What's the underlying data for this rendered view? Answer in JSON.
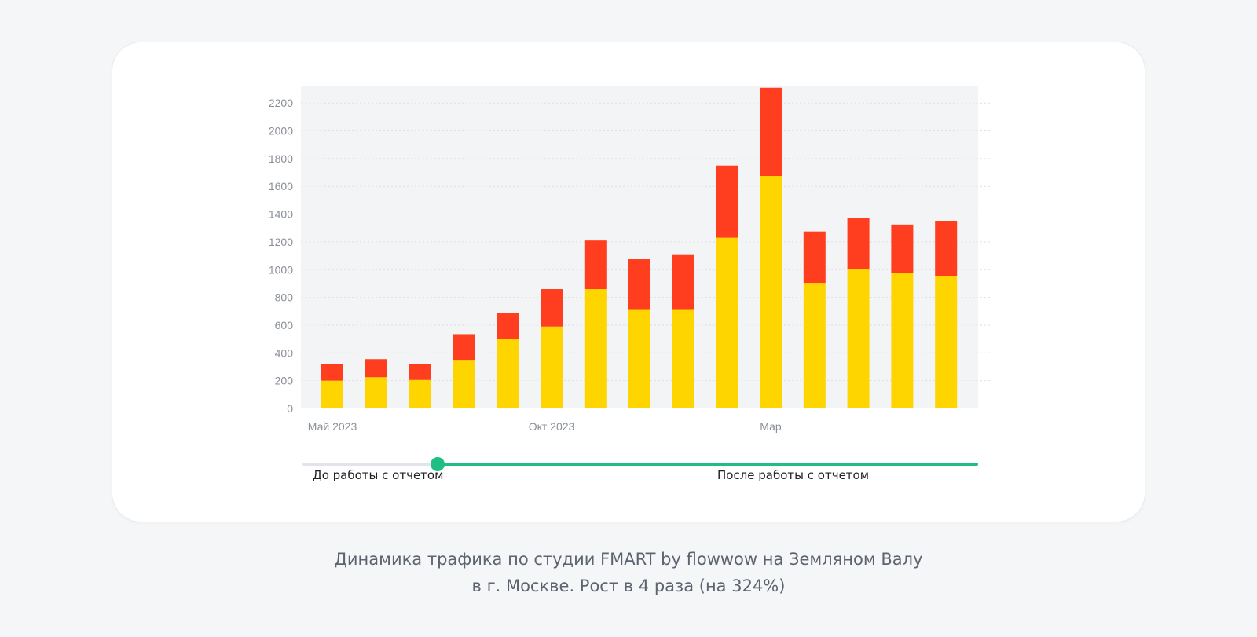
{
  "chart_data": {
    "type": "bar",
    "stacked": true,
    "categories": [
      "Май 2023",
      "",
      "",
      "",
      "",
      "Окт 2023",
      "",
      "",
      "",
      "",
      "Мар",
      "",
      "",
      "",
      ""
    ],
    "series": [
      {
        "values": [
          200,
          225,
          205,
          350,
          500,
          590,
          860,
          710,
          710,
          1230,
          1675,
          905,
          1005,
          975,
          955
        ],
        "color": "#ffd500"
      },
      {
        "values": [
          120,
          130,
          115,
          185,
          185,
          270,
          350,
          365,
          395,
          520,
          635,
          370,
          365,
          350,
          395
        ],
        "color": "#ff3d1f"
      }
    ],
    "yticks": [
      0,
      200,
      400,
      600,
      800,
      1000,
      1200,
      1400,
      1600,
      1800,
      2000,
      2200
    ],
    "ylim": [
      0,
      2320
    ],
    "grid": true,
    "plot_background": "#f3f4f6"
  },
  "slider": {
    "before_label": "До работы с отчетом",
    "after_label": "После работы с отчетом",
    "position": 0.2,
    "active_color": "#1fbf84",
    "track_color": "#e1e4ea"
  },
  "caption": {
    "line1": "Динамика трафика по студии FMART by flowwow на Земляном Валу",
    "line2": "в г. Москве. Рост в 4 раза (на 324%)"
  }
}
